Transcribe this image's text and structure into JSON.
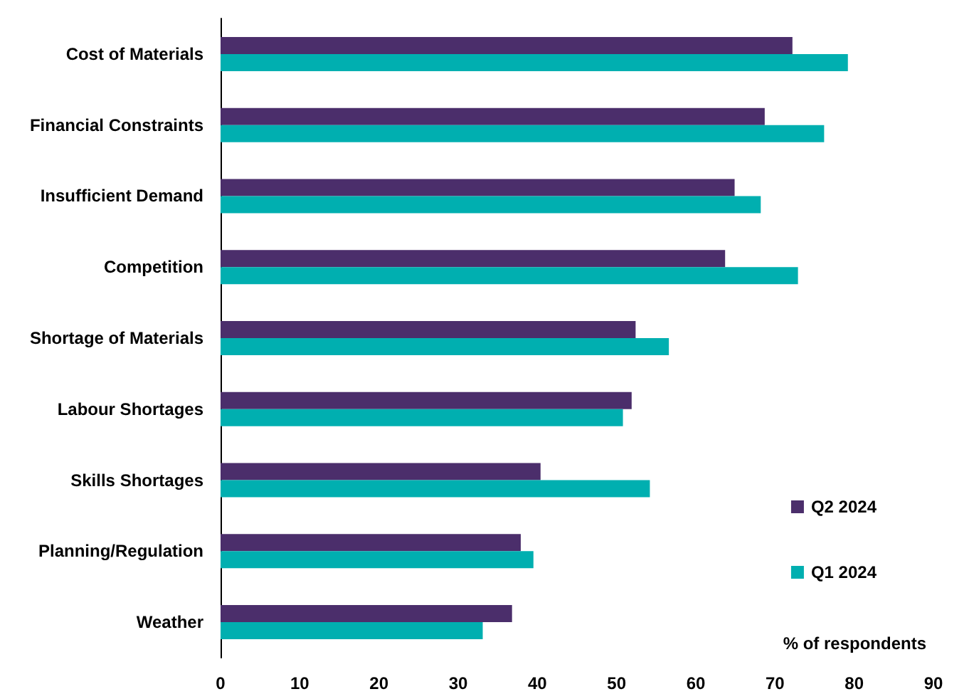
{
  "chart_data": {
    "type": "bar",
    "orientation": "horizontal",
    "categories": [
      "Cost of Materials",
      "Financial Constraints",
      "Insufficient Demand",
      "Competition",
      "Shortage of Materials",
      "Labour Shortages",
      "Skills Shortages",
      "Planning/Regulation",
      "Weather"
    ],
    "series": [
      {
        "name": "Q2 2024",
        "color": "#4b2e6b",
        "values": [
          72.2,
          68.7,
          64.9,
          63.7,
          52.4,
          51.9,
          40.4,
          37.9,
          36.8
        ]
      },
      {
        "name": "Q1 2024",
        "color": "#00afb0",
        "values": [
          79.2,
          76.2,
          68.2,
          72.9,
          56.6,
          50.8,
          54.2,
          39.5,
          33.1
        ]
      }
    ],
    "xlim": [
      0,
      90
    ],
    "xticks": [
      0,
      10,
      20,
      30,
      40,
      50,
      60,
      70,
      80,
      90
    ],
    "annotations": [
      "% of respondents"
    ],
    "legend": "bottom right",
    "grid": false
  }
}
